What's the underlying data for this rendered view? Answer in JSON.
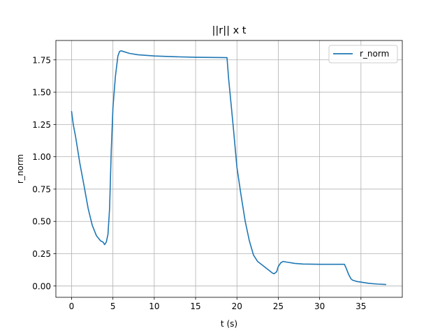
{
  "chart_data": {
    "type": "line",
    "title": "||r|| x t",
    "xlabel": "t (s)",
    "ylabel": "r_norm",
    "xlim": [
      -1.9,
      40.0
    ],
    "ylim": [
      -0.0875,
      1.9
    ],
    "xticks": [
      0,
      5,
      10,
      15,
      20,
      25,
      30,
      35
    ],
    "xtick_labels": [
      "0",
      "5",
      "10",
      "15",
      "20",
      "25",
      "30",
      "35"
    ],
    "yticks": [
      0.0,
      0.25,
      0.5,
      0.75,
      1.0,
      1.25,
      1.5,
      1.75
    ],
    "ytick_labels": [
      "0.00",
      "0.25",
      "0.50",
      "0.75",
      "1.00",
      "1.25",
      "1.50",
      "1.75"
    ],
    "grid": true,
    "legend_position": "top-right",
    "series": [
      {
        "name": "r_norm",
        "color": "#1f77b4",
        "x": [
          0,
          0.2,
          0.5,
          1.0,
          1.5,
          2.0,
          2.5,
          3.0,
          3.5,
          3.8,
          4.0,
          4.2,
          4.4,
          4.6,
          4.8,
          5.0,
          5.3,
          5.6,
          5.8,
          6.0,
          7.0,
          8.0,
          10.0,
          12.0,
          15.0,
          18.0,
          18.8,
          19.0,
          19.3,
          19.6,
          20.0,
          20.5,
          21.0,
          21.5,
          22.0,
          22.5,
          23.0,
          23.5,
          24.0,
          24.3,
          24.5,
          24.8,
          25.0,
          25.3,
          25.6,
          26.0,
          27.0,
          28.0,
          30.0,
          32.0,
          33.0,
          33.2,
          33.5,
          33.8,
          34.0,
          34.5,
          35.0,
          36.0,
          37.0,
          38.0
        ],
        "y": [
          1.35,
          1.25,
          1.15,
          0.95,
          0.78,
          0.6,
          0.47,
          0.39,
          0.35,
          0.34,
          0.32,
          0.34,
          0.4,
          0.6,
          1.05,
          1.38,
          1.62,
          1.78,
          1.815,
          1.82,
          1.8,
          1.79,
          1.78,
          1.775,
          1.77,
          1.768,
          1.767,
          1.6,
          1.4,
          1.2,
          0.92,
          0.7,
          0.5,
          0.35,
          0.24,
          0.19,
          0.165,
          0.14,
          0.115,
          0.1,
          0.095,
          0.11,
          0.15,
          0.18,
          0.19,
          0.185,
          0.175,
          0.17,
          0.168,
          0.168,
          0.168,
          0.14,
          0.09,
          0.055,
          0.045,
          0.035,
          0.03,
          0.02,
          0.015,
          0.012
        ]
      }
    ]
  }
}
